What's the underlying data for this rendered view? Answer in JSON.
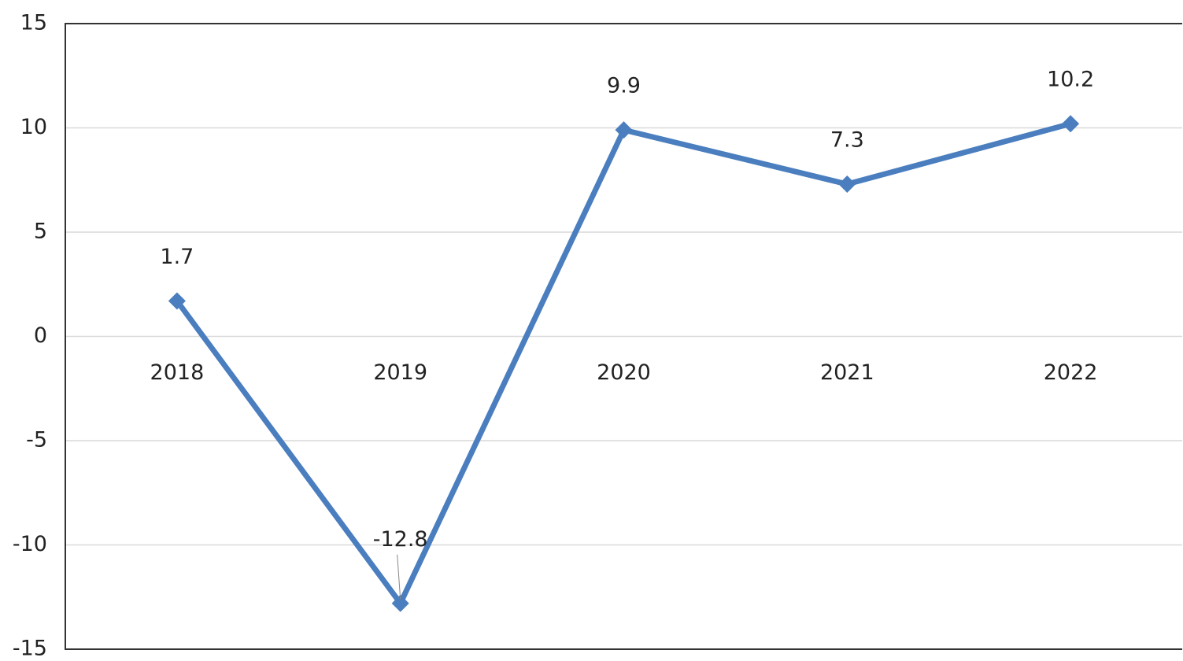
{
  "chart_data": {
    "type": "line",
    "categories": [
      "2018",
      "2019",
      "2020",
      "2021",
      "2022"
    ],
    "series": [
      {
        "color": "#4a7ebf",
        "values": [
          1.7,
          -12.8,
          9.9,
          7.3,
          10.2
        ]
      }
    ],
    "ylim": [
      -15,
      15
    ],
    "yticks": [
      -15,
      -10,
      -5,
      0,
      5,
      10,
      15
    ],
    "grid": true
  }
}
